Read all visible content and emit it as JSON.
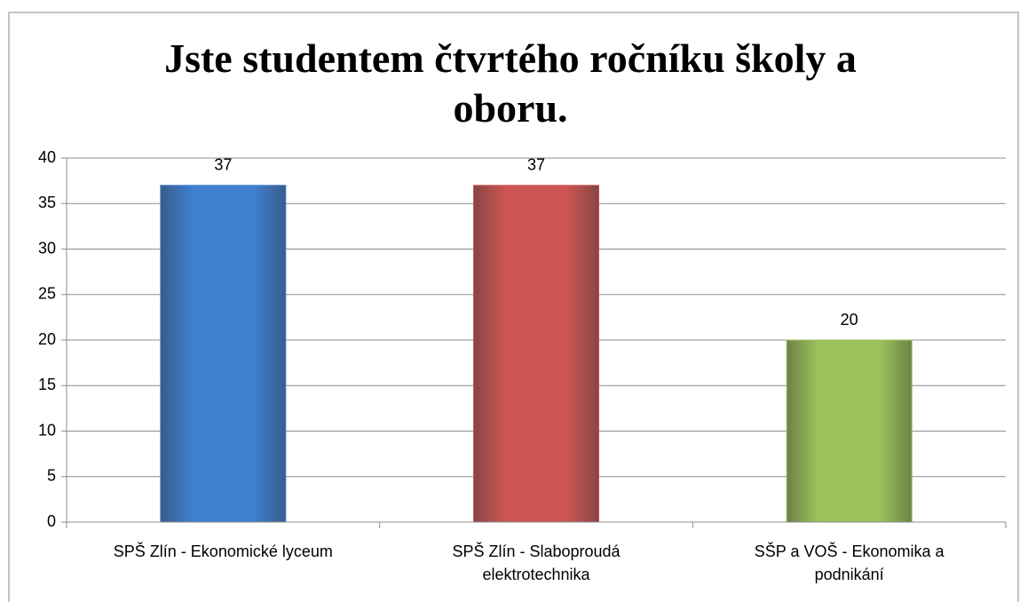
{
  "chart_data": {
    "type": "bar",
    "title": "Jste studentem čtvrtého ročníku školy a oboru.",
    "categories": [
      "SPŠ Zlín - Ekonomické lyceum",
      "SPŠ Zlín - Slaboproudá elektrotechnika",
      "SŠP a VOŠ - Ekonomika a podnikání"
    ],
    "values": [
      37,
      37,
      20
    ],
    "colors": [
      "#3f7fcf",
      "#cc5553",
      "#9bc15a"
    ],
    "ylim": [
      0,
      40
    ],
    "yticks": [
      0,
      5,
      10,
      15,
      20,
      25,
      30,
      35,
      40
    ],
    "grid": true
  }
}
